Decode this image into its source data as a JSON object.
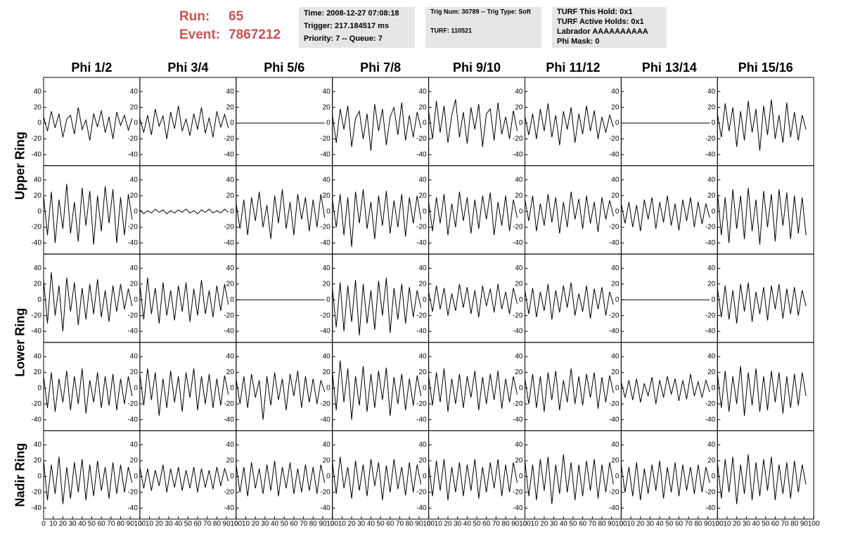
{
  "header": {
    "run_label": "Run:",
    "run": "65",
    "event_label": "Event:",
    "event": "7867212",
    "box1": [
      "Time: 2008-12-27 07:08:18",
      "Trigger: 217.184517 ms",
      "Priority: 7 -- Queue: 7"
    ],
    "box2": [
      "Trig Num: 30789 -- Trig Type: Soft",
      "TURF: 110521"
    ],
    "box3": [
      "TURF This Hold: 0x1",
      "TURF Active Holds: 0x1",
      "Labrador AAAAAAAAAA",
      "Phi Mask: 0"
    ]
  },
  "chart_data": {
    "type": "line",
    "color": "#000000",
    "columns": [
      "Phi 1/2",
      "Phi 3/4",
      "Phi 5/6",
      "Phi 7/8",
      "Phi 9/10",
      "Phi 11/12",
      "Phi 13/14",
      "Phi 15/16"
    ],
    "rows": [
      "Upper Ring",
      "Lower Ring",
      "Nadir Ring"
    ],
    "xlim": [
      0,
      100
    ],
    "xticks": [
      0,
      10,
      20,
      30,
      40,
      50,
      60,
      70,
      80,
      90,
      100
    ],
    "ylim": [
      -54,
      58
    ],
    "yticks": [
      -40,
      -20,
      0,
      20,
      40
    ],
    "x": [
      0,
      4,
      8,
      12,
      16,
      20,
      24,
      28,
      32,
      36,
      40,
      44,
      48,
      52,
      56,
      60,
      64,
      68,
      72,
      76,
      80,
      84,
      88,
      92
    ],
    "series": [
      {
        "values": [
          8,
          -10,
          15,
          -6,
          12,
          -18,
          5,
          10,
          -14,
          20,
          -8,
          4,
          -22,
          12,
          -5,
          16,
          -12,
          8,
          -20,
          14,
          -3,
          10,
          -9,
          6
        ]
      },
      {
        "values": [
          6,
          -12,
          10,
          -15,
          18,
          -4,
          9,
          -20,
          14,
          -7,
          22,
          -10,
          5,
          -16,
          12,
          -8,
          20,
          -13,
          7,
          -18,
          15,
          -5,
          11,
          -6
        ]
      },
      {
        "values": [
          0,
          0,
          0,
          0,
          0,
          0,
          0,
          0,
          0,
          0,
          0,
          0,
          0,
          0,
          0,
          0,
          0,
          0,
          0,
          0,
          0,
          0,
          0,
          0
        ]
      },
      {
        "values": [
          10,
          -25,
          18,
          -8,
          22,
          -30,
          6,
          15,
          -20,
          12,
          -35,
          24,
          -10,
          18,
          -28,
          8,
          20,
          -15,
          26,
          -22,
          10,
          -18,
          14,
          -6
        ]
      },
      {
        "values": [
          15,
          -20,
          28,
          -12,
          22,
          -25,
          10,
          30,
          -18,
          14,
          -26,
          20,
          -8,
          24,
          -30,
          12,
          18,
          -22,
          26,
          -14,
          8,
          -20,
          16,
          -10
        ]
      },
      {
        "values": [
          8,
          -15,
          12,
          -20,
          18,
          -10,
          25,
          -18,
          10,
          -28,
          15,
          -8,
          20,
          -25,
          12,
          -14,
          22,
          -10,
          16,
          -20,
          8,
          -12,
          10,
          -5
        ]
      },
      {
        "values": [
          0,
          0,
          0,
          0,
          0,
          0,
          0,
          0,
          0,
          0,
          0,
          0,
          0,
          0,
          0,
          0,
          0,
          0,
          0,
          0,
          0,
          0,
          0,
          0
        ]
      },
      {
        "values": [
          12,
          -18,
          25,
          -10,
          20,
          -30,
          15,
          -22,
          28,
          -12,
          18,
          -35,
          22,
          -15,
          30,
          -20,
          10,
          -25,
          26,
          -18,
          14,
          -22,
          10,
          -8
        ]
      },
      {
        "values": [
          20,
          -30,
          25,
          -40,
          15,
          -22,
          35,
          -28,
          12,
          -38,
          30,
          -18,
          26,
          -42,
          20,
          -25,
          32,
          -15,
          28,
          -40,
          18,
          -30,
          22,
          -10
        ]
      },
      {
        "values": [
          2,
          -3,
          1,
          -2,
          3,
          -1,
          2,
          -3,
          1,
          -2,
          2,
          -1,
          3,
          -2,
          1,
          -3,
          2,
          -1,
          3,
          -2,
          1,
          -2,
          3,
          -1
        ]
      },
      {
        "values": [
          10,
          -22,
          15,
          -30,
          18,
          -12,
          25,
          -20,
          8,
          -35,
          20,
          -15,
          28,
          -22,
          12,
          -30,
          22,
          -10,
          18,
          -25,
          15,
          -20,
          22,
          -8
        ]
      },
      {
        "values": [
          15,
          -20,
          22,
          -30,
          18,
          -45,
          25,
          -15,
          28,
          -22,
          12,
          -35,
          20,
          -18,
          26,
          -28,
          14,
          -20,
          22,
          -32,
          18,
          -15,
          20,
          -10
        ]
      },
      {
        "values": [
          12,
          -25,
          18,
          -15,
          22,
          -30,
          10,
          -20,
          25,
          -12,
          18,
          -28,
          15,
          -22,
          20,
          -10,
          24,
          -30,
          12,
          -18,
          20,
          -25,
          15,
          -8
        ]
      },
      {
        "values": [
          15,
          -12,
          20,
          -25,
          10,
          -18,
          22,
          -14,
          18,
          -28,
          12,
          -20,
          25,
          -10,
          16,
          -22,
          20,
          -15,
          12,
          -26,
          18,
          -10,
          14,
          -6
        ]
      },
      {
        "values": [
          10,
          -15,
          12,
          -20,
          8,
          -25,
          15,
          -10,
          18,
          -22,
          12,
          -14,
          20,
          -18,
          10,
          -24,
          15,
          -12,
          18,
          -20,
          12,
          -16,
          10,
          -8
        ]
      },
      {
        "values": [
          25,
          -30,
          18,
          -40,
          28,
          -22,
          20,
          -35,
          30,
          -25,
          15,
          -42,
          26,
          -20,
          22,
          -38,
          28,
          -18,
          24,
          -35,
          20,
          -28,
          18,
          -30
        ]
      },
      {
        "values": [
          25,
          -30,
          35,
          -20,
          18,
          -40,
          28,
          -15,
          22,
          -32,
          15,
          -25,
          20,
          -18,
          26,
          -22,
          12,
          -28,
          18,
          -15,
          20,
          -12,
          14,
          -8
        ]
      },
      {
        "values": [
          20,
          -25,
          28,
          -18,
          15,
          -30,
          22,
          -20,
          12,
          -26,
          18,
          -15,
          22,
          -28,
          14,
          -20,
          25,
          -18,
          12,
          -22,
          18,
          -14,
          20,
          -6
        ]
      },
      {
        "values": [
          0,
          0,
          0,
          0,
          0,
          0,
          0,
          0,
          0,
          0,
          0,
          0,
          0,
          0,
          0,
          0,
          0,
          0,
          0,
          0,
          0,
          0,
          0,
          0
        ]
      },
      {
        "values": [
          15,
          -35,
          22,
          -40,
          18,
          -28,
          25,
          -45,
          20,
          -30,
          12,
          -38,
          24,
          -20,
          28,
          -42,
          15,
          -25,
          20,
          -30,
          16,
          -22,
          12,
          -10
        ]
      },
      {
        "values": [
          10,
          -15,
          18,
          -12,
          15,
          -20,
          8,
          -14,
          20,
          -10,
          16,
          -18,
          12,
          -22,
          18,
          -8,
          14,
          -16,
          20,
          -12,
          10,
          -18,
          15,
          -5
        ]
      },
      {
        "values": [
          12,
          -18,
          15,
          -22,
          10,
          -14,
          20,
          -25,
          12,
          -16,
          18,
          -10,
          22,
          -20,
          8,
          -15,
          18,
          -24,
          14,
          -12,
          16,
          -20,
          10,
          -6
        ]
      },
      {
        "values": [
          0,
          0,
          0,
          0,
          0,
          0,
          0,
          0,
          0,
          0,
          0,
          0,
          0,
          0,
          0,
          0,
          0,
          0,
          0,
          0,
          0,
          0,
          0,
          0
        ]
      },
      {
        "values": [
          15,
          -22,
          18,
          -25,
          12,
          -30,
          20,
          -15,
          22,
          -28,
          10,
          -18,
          16,
          -26,
          18,
          -12,
          20,
          -24,
          14,
          -18,
          16,
          -20,
          12,
          -8
        ]
      },
      {
        "values": [
          15,
          -25,
          20,
          -30,
          12,
          -18,
          22,
          -28,
          15,
          -20,
          25,
          -32,
          10,
          -18,
          20,
          -25,
          15,
          -22,
          18,
          -28,
          12,
          -20,
          15,
          -10
        ]
      },
      {
        "values": [
          18,
          -22,
          25,
          -15,
          20,
          -35,
          12,
          -25,
          22,
          -18,
          15,
          -30,
          20,
          -12,
          25,
          -28,
          15,
          -20,
          18,
          -25,
          12,
          -22,
          16,
          -8
        ]
      },
      {
        "values": [
          12,
          -20,
          15,
          -25,
          18,
          -12,
          10,
          -40,
          15,
          -22,
          20,
          -15,
          12,
          -28,
          18,
          -10,
          22,
          -25,
          15,
          -18,
          12,
          -20,
          10,
          -5
        ]
      },
      {
        "values": [
          20,
          -28,
          35,
          -18,
          25,
          -40,
          15,
          -22,
          28,
          -30,
          18,
          -25,
          22,
          -15,
          26,
          -35,
          14,
          -20,
          18,
          -28,
          12,
          -22,
          16,
          -10
        ]
      },
      {
        "values": [
          15,
          -22,
          20,
          -18,
          25,
          -30,
          12,
          -20,
          18,
          -25,
          15,
          -12,
          22,
          -28,
          14,
          -20,
          18,
          -15,
          22,
          -26,
          12,
          -18,
          15,
          -8
        ]
      },
      {
        "values": [
          12,
          -20,
          18,
          -25,
          15,
          -30,
          20,
          -15,
          22,
          -28,
          10,
          -18,
          25,
          -20,
          15,
          -22,
          18,
          -12,
          20,
          -26,
          14,
          -18,
          16,
          -6
        ]
      },
      {
        "values": [
          8,
          -12,
          10,
          -15,
          12,
          -18,
          6,
          -10,
          14,
          -20,
          10,
          -12,
          15,
          -8,
          12,
          -16,
          10,
          -14,
          18,
          -10,
          8,
          -12,
          10,
          -5
        ]
      },
      {
        "values": [
          18,
          -25,
          22,
          -30,
          15,
          -20,
          28,
          -35,
          20,
          -22,
          25,
          -30,
          15,
          -28,
          22,
          -18,
          20,
          -32,
          15,
          -25,
          18,
          -22,
          20,
          -10
        ]
      },
      {
        "values": [
          20,
          -30,
          15,
          -22,
          25,
          -35,
          12,
          -28,
          18,
          -20,
          22,
          -30,
          15,
          -25,
          20,
          -18,
          12,
          -28,
          18,
          -22,
          15,
          -20,
          12,
          -8
        ]
      },
      {
        "values": [
          12,
          -15,
          10,
          -18,
          8,
          -12,
          15,
          -20,
          10,
          -14,
          12,
          -18,
          8,
          -15,
          12,
          -20,
          10,
          -14,
          8,
          -16,
          12,
          -12,
          10,
          -6
        ]
      },
      {
        "values": [
          15,
          -20,
          12,
          -25,
          18,
          -15,
          10,
          -22,
          15,
          -18,
          20,
          -25,
          12,
          -15,
          18,
          -22,
          10,
          -20,
          15,
          -18,
          12,
          -22,
          15,
          -8
        ]
      },
      {
        "values": [
          18,
          -22,
          25,
          -15,
          12,
          -28,
          20,
          -18,
          15,
          -25,
          22,
          -12,
          18,
          -30,
          14,
          -20,
          22,
          -16,
          12,
          -24,
          18,
          -20,
          15,
          -10
        ]
      },
      {
        "values": [
          15,
          -25,
          20,
          -18,
          22,
          -30,
          12,
          -20,
          18,
          -25,
          15,
          -18,
          22,
          -28,
          12,
          -20,
          18,
          -15,
          22,
          -25,
          15,
          -20,
          18,
          -8
        ]
      },
      {
        "values": [
          20,
          -25,
          15,
          -30,
          22,
          -18,
          25,
          -35,
          15,
          -22,
          28,
          -20,
          18,
          -30,
          15,
          -25,
          20,
          -18,
          22,
          -28,
          15,
          -20,
          18,
          -10
        ]
      },
      {
        "values": [
          15,
          -20,
          12,
          -25,
          18,
          -30,
          10,
          -22,
          15,
          -18,
          20,
          -28,
          12,
          -20,
          18,
          -25,
          15,
          -18,
          12,
          -22,
          15,
          -20,
          12,
          -8
        ]
      },
      {
        "values": [
          18,
          -28,
          22,
          -20,
          25,
          -35,
          15,
          -22,
          28,
          -30,
          18,
          -25,
          22,
          -18,
          25,
          -30,
          15,
          -22,
          18,
          -28,
          20,
          -20,
          15,
          -10
        ]
      }
    ]
  }
}
